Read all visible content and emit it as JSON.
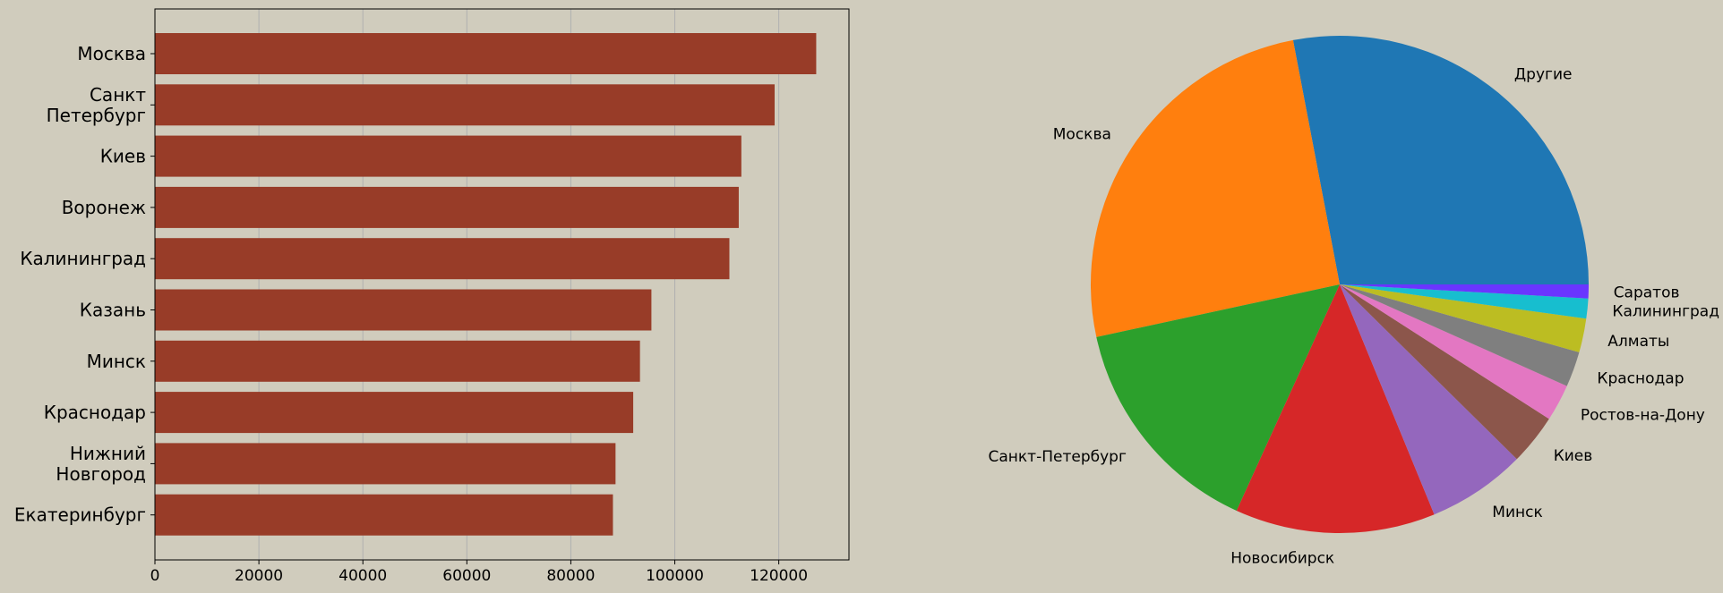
{
  "chart_data": [
    {
      "type": "bar",
      "orientation": "horizontal",
      "categories": [
        "Москва",
        "Санкт\nПетербург",
        "Киев",
        "Воронеж",
        "Калининград",
        "Казань",
        "Минск",
        "Краснодар",
        "Нижний\nНовгород",
        "Екатеринбург"
      ],
      "values": [
        127200,
        119200,
        112800,
        112300,
        110500,
        95500,
        93300,
        92000,
        88600,
        88100
      ],
      "xticks": [
        0,
        20000,
        40000,
        60000,
        80000,
        100000,
        120000
      ],
      "xlim": [
        0,
        133500
      ],
      "grid": "vertical",
      "color": "#983c28"
    },
    {
      "type": "pie",
      "labels": [
        "Другие",
        "Москва",
        "Санкт-Петербург",
        "Новосибирск",
        "Минск",
        "Киев",
        "Ростов-на-Дону",
        "Краснодар",
        "Алматы",
        "Калининград",
        "Саратов"
      ],
      "values": [
        28.0,
        25.4,
        14.8,
        13.0,
        6.4,
        3.3,
        2.4,
        2.3,
        2.2,
        1.3,
        0.9
      ],
      "colors": [
        "#1f77b4",
        "#ff7f0e",
        "#2ca02c",
        "#d62728",
        "#9467bd",
        "#8c564b",
        "#e377c2",
        "#7f7f7f",
        "#bcbd22",
        "#17becf",
        "#6a35ff"
      ]
    }
  ]
}
